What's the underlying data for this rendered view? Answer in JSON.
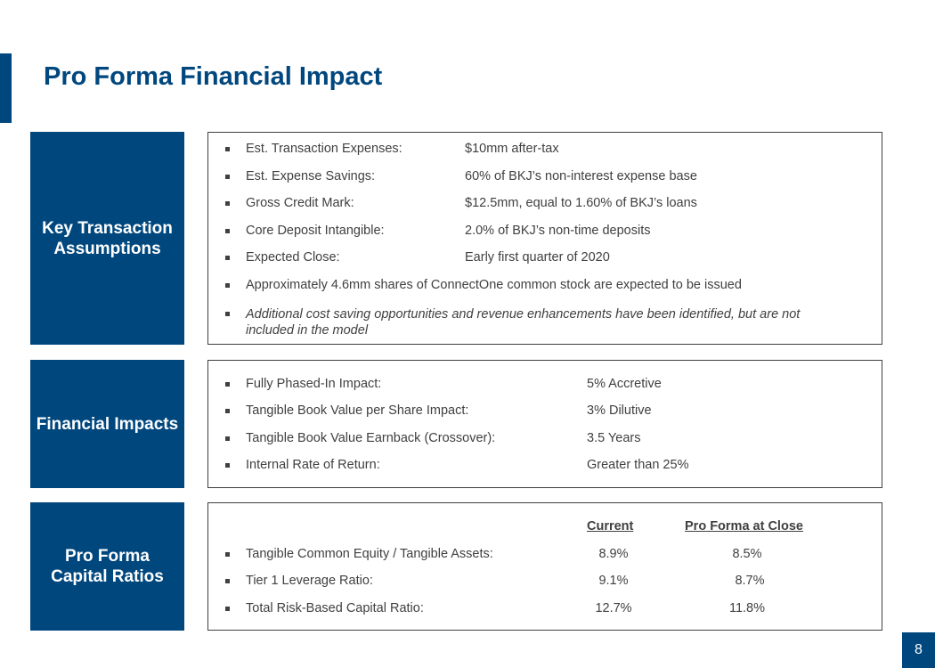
{
  "title": "Pro Forma Financial Impact",
  "page_number": "8",
  "sections": {
    "key_assumptions": {
      "label": "Key Transaction Assumptions",
      "items": [
        {
          "label": "Est. Transaction Expenses:",
          "value": "$10mm after-tax"
        },
        {
          "label": "Est. Expense Savings:",
          "value": "60% of BKJ’s non-interest expense base"
        },
        {
          "label": "Gross Credit Mark:",
          "value": "$12.5mm, equal to 1.60% of BKJ’s loans"
        },
        {
          "label": "Core Deposit Intangible:",
          "value": "2.0% of BKJ’s non-time deposits"
        },
        {
          "label": "Expected Close:",
          "value": "Early first quarter of 2020"
        }
      ],
      "note": "Approximately 4.6mm shares of ConnectOne common stock are expected to be issued",
      "italic_note": "Additional cost saving opportunities and revenue enhancements have been identified, but are not included in the model"
    },
    "financial_impacts": {
      "label": "Financial Impacts",
      "items": [
        {
          "label": "Fully Phased-In Impact:",
          "value": "5% Accretive"
        },
        {
          "label": "Tangible Book Value per Share Impact:",
          "value": "3% Dilutive"
        },
        {
          "label": "Tangible Book Value Earnback (Crossover):",
          "value": "3.5 Years"
        },
        {
          "label": "Internal Rate of Return:",
          "value": "Greater than 25%"
        }
      ]
    },
    "capital_ratios": {
      "label": "Pro Forma Capital Ratios",
      "headers": {
        "current": "Current",
        "pro_forma": "Pro Forma at Close"
      },
      "rows": [
        {
          "label": "Tangible Common Equity / Tangible Assets:",
          "current": "8.9%",
          "pro_forma": "8.5%"
        },
        {
          "label": "Tier 1 Leverage Ratio:",
          "current": "9.1%",
          "pro_forma": "8.7%"
        },
        {
          "label": "Total Risk-Based Capital Ratio:",
          "current": "12.7%",
          "pro_forma": "11.8%"
        }
      ]
    }
  },
  "colors": {
    "brand": "#00477e",
    "text": "#404040",
    "border": "#404040"
  }
}
